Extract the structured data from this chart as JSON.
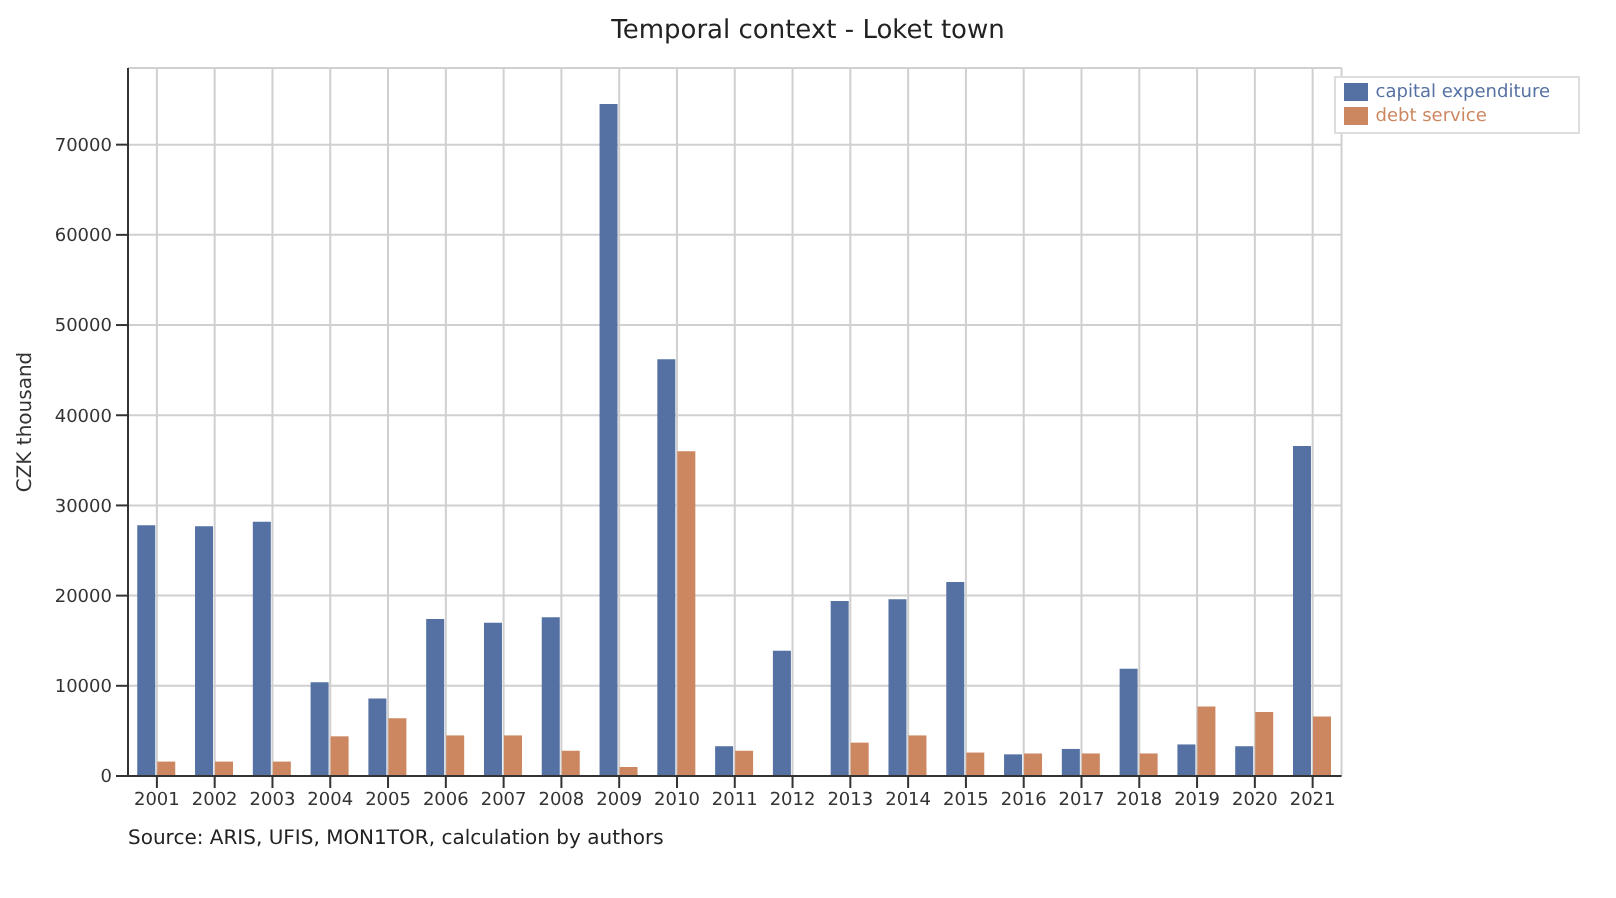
{
  "chart_data": {
    "type": "bar",
    "title": "Temporal context - Loket town",
    "ylabel": "CZK thousand",
    "categories": [
      "2001",
      "2002",
      "2003",
      "2004",
      "2005",
      "2006",
      "2007",
      "2008",
      "2009",
      "2010",
      "2011",
      "2012",
      "2013",
      "2014",
      "2015",
      "2016",
      "2017",
      "2018",
      "2019",
      "2020",
      "2021"
    ],
    "series": [
      {
        "name": "capital expenditure",
        "color": "#5571a3",
        "values": [
          27800,
          27700,
          28200,
          10400,
          8600,
          17400,
          17000,
          17600,
          74500,
          46200,
          3300,
          13900,
          19400,
          19600,
          21500,
          2400,
          3000,
          11900,
          3500,
          3300,
          36600
        ]
      },
      {
        "name": "debt service",
        "color": "#cc8760",
        "values": [
          1600,
          1600,
          1600,
          4400,
          6400,
          4500,
          4500,
          2800,
          1000,
          36000,
          2800,
          0,
          3700,
          4500,
          2600,
          2500,
          2500,
          2500,
          7700,
          7100,
          6600
        ]
      }
    ],
    "ylim": [
      0,
      78500
    ],
    "yticks": [
      0,
      10000,
      20000,
      30000,
      40000,
      50000,
      60000,
      70000
    ],
    "grid": true,
    "legend": "top right",
    "annotations": [
      "Source: ARIS, UFIS, MON1TOR, calculation by authors"
    ]
  }
}
